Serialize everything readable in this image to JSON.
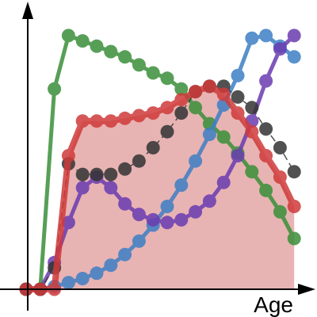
{
  "chart_data": {
    "type": "line",
    "xlabel": "Age",
    "ylabel": "",
    "title": "",
    "xlim": [
      0,
      20
    ],
    "ylim": [
      0,
      10
    ],
    "grid": false,
    "legend": "none",
    "x": [
      0,
      1,
      2,
      3,
      4,
      5,
      6,
      7,
      8,
      9,
      10,
      11,
      12,
      13,
      14,
      15,
      16,
      17,
      18,
      19
    ],
    "series": [
      {
        "color": "#3a8f3a",
        "style": "solid",
        "values": [
          0,
          0,
          7.5,
          9.5,
          9.3,
          9.1,
          8.9,
          8.7,
          8.4,
          8.1,
          7.9,
          7.5,
          6.8,
          6.2,
          5.7,
          5.1,
          4.4,
          3.7,
          2.9,
          1.9
        ]
      },
      {
        "color": "#3d7fc5",
        "style": "solid",
        "values": [
          0,
          0,
          0.1,
          0.25,
          0.4,
          0.6,
          0.9,
          1.3,
          1.8,
          2.4,
          3.1,
          3.9,
          4.8,
          5.8,
          6.9,
          8.0,
          9.4,
          9.5,
          9.1,
          8.7
        ]
      },
      {
        "color": "#6a3cb0",
        "style": "solid",
        "values": [
          0,
          0,
          1.0,
          2.5,
          3.8,
          4.2,
          3.8,
          3.2,
          2.8,
          2.6,
          2.5,
          2.6,
          2.9,
          3.3,
          4.0,
          5.0,
          6.3,
          7.8,
          9.0,
          9.5
        ]
      },
      {
        "color": "#333333",
        "style": "dashed",
        "values": [
          0,
          0,
          0.8,
          4.7,
          4.3,
          4.3,
          4.3,
          4.5,
          4.8,
          5.3,
          5.9,
          6.6,
          7.4,
          7.6,
          7.6,
          7.2,
          6.8,
          6.0,
          5.3,
          4.4
        ]
      },
      {
        "color": "#d03a3a",
        "style": "solid",
        "fill": "#e8b3b3",
        "values": [
          0,
          0,
          0,
          5.0,
          6.3,
          6.3,
          6.3,
          6.4,
          6.5,
          6.6,
          6.8,
          7.1,
          7.4,
          7.6,
          7.3,
          6.6,
          5.9,
          5.0,
          4.2,
          3.1
        ]
      }
    ]
  }
}
